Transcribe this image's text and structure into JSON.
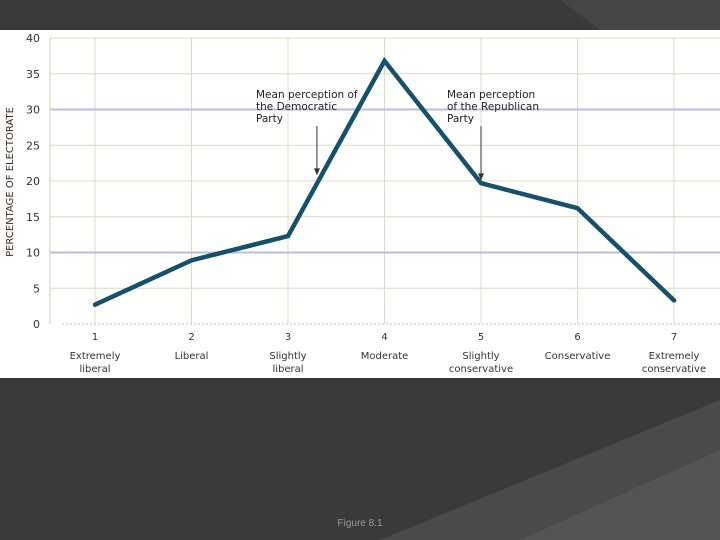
{
  "slide": {
    "caption": "Figure 8.1",
    "background_color": "#3a3a3a"
  },
  "chart_data": {
    "type": "line",
    "title": "",
    "xlabel": "",
    "ylabel": "PERCENTAGE OF ELECTORATE",
    "ylim": [
      0,
      40
    ],
    "yticks": [
      0,
      5,
      10,
      15,
      20,
      25,
      30,
      35,
      40
    ],
    "x": [
      1,
      2,
      3,
      4,
      5,
      6,
      7
    ],
    "x_tick_labels": [
      [
        "Extremely",
        "liberal"
      ],
      [
        "Liberal"
      ],
      [
        "Slightly",
        "liberal"
      ],
      [
        "Moderate"
      ],
      [
        "Slightly",
        "conservative"
      ],
      [
        "Conservative"
      ],
      [
        "Extremely",
        "conservative"
      ]
    ],
    "series": [
      {
        "values": [
          2.7,
          8.9,
          12.3,
          36.8,
          19.7,
          16.2,
          3.3
        ],
        "color": "#16506a"
      }
    ],
    "annotations": [
      {
        "lines": [
          "Mean perception of",
          "the Democratic",
          "Party"
        ],
        "x": 3.3,
        "y": 20.5
      },
      {
        "lines": [
          "Mean perception",
          "of the Republican",
          "Party"
        ],
        "x": 5.0,
        "y": 19.8
      }
    ],
    "grid": {
      "y_major": [
        10,
        30
      ],
      "y_major_color": "#b9bddf",
      "minor_color": "#dcdcc4"
    },
    "line_color": "#16506a"
  }
}
